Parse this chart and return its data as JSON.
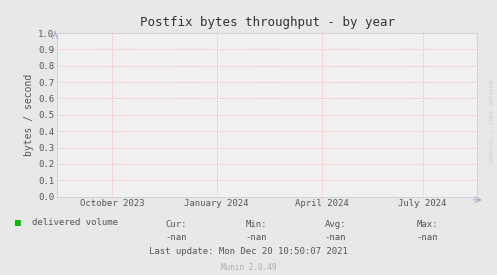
{
  "title": "Postfix bytes throughput - by year",
  "ylabel": "bytes / second",
  "ylim": [
    0.0,
    1.0
  ],
  "yticks": [
    0.0,
    0.1,
    0.2,
    0.3,
    0.4,
    0.5,
    0.6,
    0.7,
    0.8,
    0.9,
    1.0
  ],
  "xtick_labels": [
    "October 2023",
    "January 2024",
    "April 2024",
    "July 2024"
  ],
  "xtick_positions": [
    0.13,
    0.38,
    0.63,
    0.87
  ],
  "background_color": "#e8e8e8",
  "plot_bg_color": "#f0f0f0",
  "grid_color": "#ffaaaa",
  "border_color": "#ccccdd",
  "title_color": "#333333",
  "label_color": "#555555",
  "tick_color": "#555555",
  "legend_label": "delivered volume",
  "legend_color": "#00bb00",
  "footer": "Last update: Mon Dec 20 10:50:07 2021",
  "munin_version": "Munin 2.0.49",
  "watermark": "RRDTOOL / TOBI OETIKER",
  "watermark_color": "#ccccdd",
  "arrow_color": "#aaaacc",
  "stats": [
    "Cur:",
    "Min:",
    "Avg:",
    "Max:"
  ],
  "stats_values": [
    "-nan",
    "-nan",
    "-nan",
    "-nan"
  ]
}
